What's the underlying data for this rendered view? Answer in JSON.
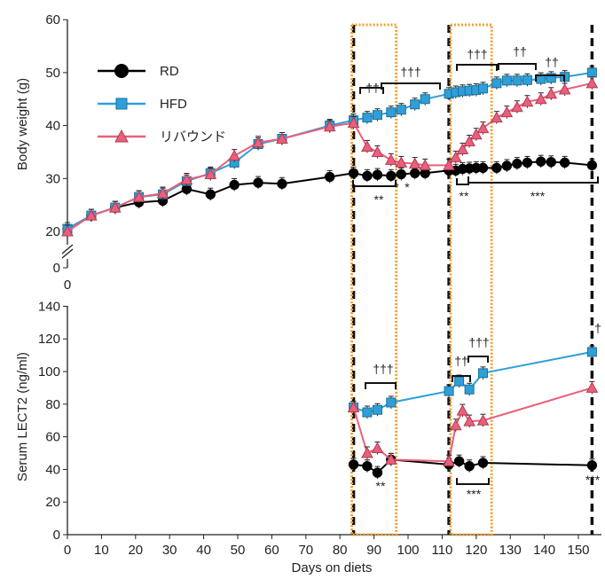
{
  "chart_data": [
    {
      "type": "line",
      "title": "",
      "xlabel": "Days on diets",
      "ylabel": "Body weight (g)",
      "xlim": [
        0,
        156
      ],
      "ylim": [
        0,
        60
      ],
      "y_break": [
        0,
        18
      ],
      "x_ticks": [
        "0",
        "10",
        "20",
        "30",
        "40",
        "50",
        "60",
        "70",
        "80",
        "90",
        "100",
        "110",
        "120",
        "130",
        "140",
        "150"
      ],
      "y_ticks": [
        "20",
        "30",
        "40",
        "50",
        "60"
      ],
      "y_zero_label": "0",
      "x_zero_label": "0",
      "legend_position": "top-left",
      "series": [
        {
          "name": "RD",
          "color": "#000000",
          "marker": "circle",
          "points": [
            [
              0,
              20.5
            ],
            [
              7,
              23
            ],
            [
              14,
              24.5
            ],
            [
              21,
              25.5
            ],
            [
              28,
              25.8
            ],
            [
              35,
              28
            ],
            [
              42,
              27
            ],
            [
              49,
              28.8
            ],
            [
              56,
              29.2
            ],
            [
              63,
              29
            ],
            [
              77,
              30.3
            ],
            [
              84,
              31
            ],
            [
              88,
              30.5
            ],
            [
              91,
              30.7
            ],
            [
              95,
              30.5
            ],
            [
              98,
              30.8
            ],
            [
              102,
              31
            ],
            [
              105,
              31
            ],
            [
              112,
              31.5
            ],
            [
              114,
              31.5
            ],
            [
              116,
              31.8
            ],
            [
              118,
              31.9
            ],
            [
              120,
              32
            ],
            [
              122,
              32
            ],
            [
              126,
              32
            ],
            [
              129,
              32.4
            ],
            [
              132,
              32.8
            ],
            [
              135,
              33
            ],
            [
              139,
              33.2
            ],
            [
              142,
              33.1
            ],
            [
              146,
              33
            ],
            [
              154,
              32.5
            ]
          ]
        },
        {
          "name": "HFD",
          "color": "#2f9fd8",
          "marker": "square",
          "points": [
            [
              0,
              20.5
            ],
            [
              7,
              23
            ],
            [
              14,
              24.5
            ],
            [
              21,
              26.5
            ],
            [
              28,
              27
            ],
            [
              35,
              29.5
            ],
            [
              42,
              31
            ],
            [
              49,
              33
            ],
            [
              56,
              36.5
            ],
            [
              63,
              37.5
            ],
            [
              77,
              40
            ],
            [
              84,
              41
            ],
            [
              88,
              41.5
            ],
            [
              91,
              42
            ],
            [
              95,
              42.5
            ],
            [
              98,
              43
            ],
            [
              102,
              44
            ],
            [
              105,
              45
            ],
            [
              112,
              46
            ],
            [
              114,
              46.3
            ],
            [
              116,
              46.5
            ],
            [
              118,
              46.6
            ],
            [
              120,
              46.7
            ],
            [
              122,
              47
            ],
            [
              126,
              48
            ],
            [
              129,
              48.5
            ],
            [
              132,
              48.5
            ],
            [
              135,
              48.6
            ],
            [
              139,
              48.8
            ],
            [
              142,
              49
            ],
            [
              146,
              49.2
            ],
            [
              154,
              50
            ]
          ]
        },
        {
          "name": "リバウンド",
          "color": "#e8607a",
          "marker": "triangle",
          "points": [
            [
              0,
              20
            ],
            [
              7,
              23
            ],
            [
              14,
              24.5
            ],
            [
              21,
              26.5
            ],
            [
              28,
              27.2
            ],
            [
              35,
              29.8
            ],
            [
              42,
              30.8
            ],
            [
              49,
              34.3
            ],
            [
              56,
              36.8
            ],
            [
              63,
              37.5
            ],
            [
              77,
              39.8
            ],
            [
              84,
              40.5
            ],
            [
              88,
              36
            ],
            [
              91,
              35
            ],
            [
              95,
              33.5
            ],
            [
              98,
              33
            ],
            [
              102,
              32.8
            ],
            [
              105,
              32.5
            ],
            [
              112,
              32.5
            ],
            [
              114,
              34
            ],
            [
              116,
              35.5
            ],
            [
              118,
              37
            ],
            [
              120,
              38.3
            ],
            [
              122,
              39.5
            ],
            [
              126,
              41.5
            ],
            [
              129,
              42.5
            ],
            [
              132,
              43.5
            ],
            [
              135,
              44.5
            ],
            [
              139,
              45
            ],
            [
              142,
              46
            ],
            [
              146,
              46.8
            ],
            [
              154,
              48
            ]
          ]
        }
      ]
    },
    {
      "type": "line",
      "title": "",
      "xlabel": "Days on diets",
      "ylabel": "Serum LECT2 (ng/ml)",
      "xlim": [
        0,
        156
      ],
      "ylim": [
        0,
        140
      ],
      "y_ticks": [
        "0",
        "20",
        "40",
        "60",
        "80",
        "100",
        "120",
        "140"
      ],
      "series": [
        {
          "name": "RD",
          "color": "#000000",
          "marker": "circle",
          "points": [
            [
              84,
              43
            ],
            [
              88,
              42
            ],
            [
              91,
              38
            ],
            [
              95,
              46
            ],
            [
              112,
              43
            ],
            [
              115,
              45
            ],
            [
              118,
              42
            ],
            [
              122,
              44
            ],
            [
              154,
              42.5
            ]
          ]
        },
        {
          "name": "HFD",
          "color": "#2f9fd8",
          "marker": "square",
          "points": [
            [
              84,
              78
            ],
            [
              88,
              75
            ],
            [
              91,
              76.5
            ],
            [
              95,
              81
            ],
            [
              112,
              88
            ],
            [
              115,
              94
            ],
            [
              118,
              89
            ],
            [
              122,
              99
            ],
            [
              154,
              112
            ]
          ]
        },
        {
          "name": "リバウンド",
          "color": "#e8607a",
          "marker": "triangle",
          "points": [
            [
              84,
              78
            ],
            [
              88,
              50
            ],
            [
              91,
              53
            ],
            [
              95,
              46
            ],
            [
              112,
              45
            ],
            [
              114,
              67
            ],
            [
              116,
              76
            ],
            [
              118,
              69.5
            ],
            [
              122,
              70
            ],
            [
              154,
              90
            ]
          ]
        }
      ]
    }
  ],
  "annotations": {
    "dagger2_a": "††",
    "dagger3_a": "†††",
    "dagger3_b": "†††",
    "dagger2_b": "††",
    "dagger2_c": "††",
    "star2_a": "**",
    "star1_a": "*",
    "star1_b": "*",
    "star3_a": "***",
    "dagger2_d": "††",
    "dagger3_c": "†††",
    "dagger1_a": "†",
    "star2_b": "**",
    "star3_b": "***",
    "star3_c": "***"
  },
  "colors": {
    "dashed_box": "#f0a030",
    "dashed_line": "#111111"
  }
}
